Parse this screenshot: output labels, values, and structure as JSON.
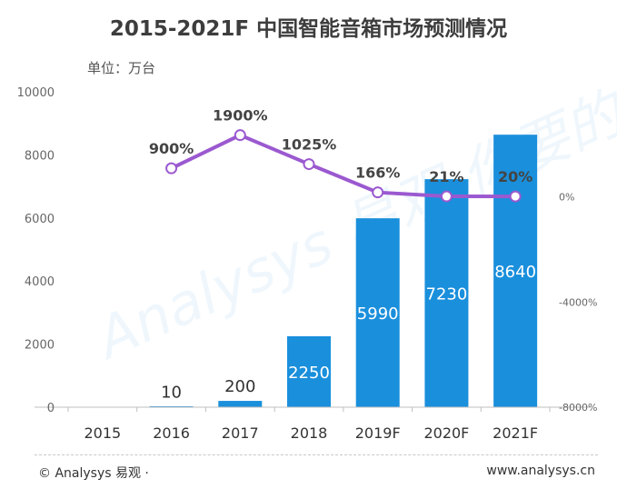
{
  "title": "2015-2021F 中国智能音箱市场预测情况",
  "unit": "单位：万台",
  "watermark": "Analysys 易观 你要的数据",
  "footer": {
    "copyright": "© Analysys 易观 ·",
    "website": "www.analysys.cn"
  },
  "colors": {
    "bar": "#1a8fdc",
    "line": "#9b59d0",
    "title": "#3d3d3d",
    "axis_text": "#666666"
  },
  "chart_data": {
    "type": "bar",
    "title": "2015-2021F 中国智能音箱市场预测情况",
    "categories": [
      "2015",
      "2016",
      "2017",
      "2018",
      "2019F",
      "2020F",
      "2021F"
    ],
    "ylim": [
      0,
      10000
    ],
    "y_ticks": [
      "0",
      "2000",
      "4000",
      "6000",
      "8000",
      "10000"
    ],
    "y2lim": [
      -8000,
      4000
    ],
    "y2_ticks": [
      "-8000%",
      "-4000%",
      "0%"
    ],
    "grid": false,
    "legend": "none",
    "series": [
      {
        "type": "bar",
        "values": [
          0,
          10,
          200,
          2250,
          5990,
          7230,
          8640
        ],
        "labels": [
          "",
          "10",
          "200",
          "2250",
          "5990",
          "7230",
          "8640"
        ]
      },
      {
        "type": "line",
        "axis": "right",
        "display_values": [
          900,
          1900,
          1025,
          166,
          21,
          20
        ],
        "labels": [
          "900%",
          "1900%",
          "1025%",
          "166%",
          "21%",
          "20%"
        ],
        "start_index": 1
      }
    ]
  }
}
